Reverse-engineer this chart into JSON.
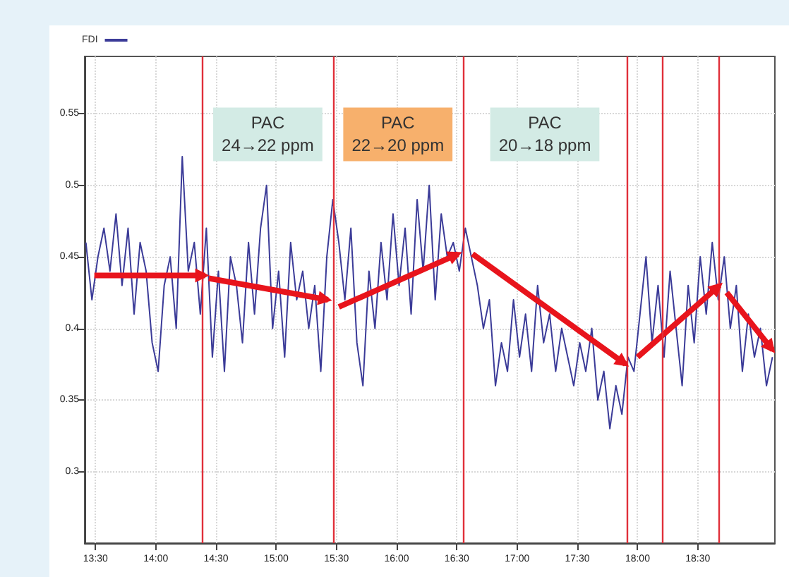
{
  "chart_data": {
    "type": "line",
    "legend": "top left",
    "grid": true,
    "marker": "none",
    "line_style": "solid",
    "xlim": [
      13.41,
      19.14
    ],
    "ylim": [
      0.25,
      0.59
    ],
    "xticks": [
      {
        "value": 13.5,
        "label": "13:30"
      },
      {
        "value": 14,
        "label": "14:00"
      },
      {
        "value": 14.5,
        "label": "14:30"
      },
      {
        "value": 15,
        "label": "15:00"
      },
      {
        "value": 15.5,
        "label": "15:30"
      },
      {
        "value": 16,
        "label": "16:00"
      },
      {
        "value": 16.5,
        "label": "16:30"
      },
      {
        "value": 17,
        "label": "17:00"
      },
      {
        "value": 17.5,
        "label": "17:30"
      },
      {
        "value": 18,
        "label": "18:00"
      },
      {
        "value": 18.5,
        "label": "18:30"
      }
    ],
    "yticks": [
      0.3,
      0.35,
      0.4,
      0.45,
      0.5,
      0.55
    ],
    "series": [
      {
        "name": "FDI",
        "color": "#3b3b98",
        "x": [
          13.42,
          13.47,
          13.52,
          13.57,
          13.62,
          13.67,
          13.72,
          13.77,
          13.82,
          13.87,
          13.92,
          13.97,
          14.02,
          14.07,
          14.12,
          14.17,
          14.22,
          14.27,
          14.32,
          14.37,
          14.42,
          14.47,
          14.52,
          14.57,
          14.62,
          14.67,
          14.72,
          14.77,
          14.82,
          14.87,
          14.92,
          14.97,
          15.02,
          15.07,
          15.12,
          15.17,
          15.22,
          15.27,
          15.32,
          15.37,
          15.42,
          15.47,
          15.52,
          15.57,
          15.62,
          15.67,
          15.72,
          15.77,
          15.82,
          15.87,
          15.92,
          15.97,
          16.02,
          16.07,
          16.12,
          16.17,
          16.22,
          16.27,
          16.32,
          16.37,
          16.42,
          16.47,
          16.52,
          16.57,
          16.62,
          16.67,
          16.72,
          16.77,
          16.82,
          16.87,
          16.92,
          16.97,
          17.02,
          17.07,
          17.12,
          17.17,
          17.22,
          17.27,
          17.32,
          17.37,
          17.42,
          17.47,
          17.52,
          17.57,
          17.62,
          17.67,
          17.72,
          17.77,
          17.82,
          17.87,
          17.92,
          17.97,
          18.02,
          18.07,
          18.12,
          18.17,
          18.22,
          18.27,
          18.32,
          18.37,
          18.42,
          18.47,
          18.52,
          18.57,
          18.62,
          18.67,
          18.72,
          18.77,
          18.82,
          18.87,
          18.92,
          18.97,
          19.02,
          19.07,
          19.12
        ],
        "values": [
          0.46,
          0.42,
          0.45,
          0.47,
          0.44,
          0.48,
          0.43,
          0.47,
          0.41,
          0.46,
          0.44,
          0.39,
          0.37,
          0.43,
          0.45,
          0.4,
          0.52,
          0.44,
          0.46,
          0.41,
          0.47,
          0.38,
          0.44,
          0.37,
          0.45,
          0.43,
          0.39,
          0.46,
          0.41,
          0.47,
          0.5,
          0.4,
          0.44,
          0.38,
          0.46,
          0.42,
          0.44,
          0.4,
          0.43,
          0.37,
          0.45,
          0.49,
          0.46,
          0.42,
          0.47,
          0.39,
          0.36,
          0.44,
          0.4,
          0.46,
          0.42,
          0.48,
          0.43,
          0.47,
          0.41,
          0.49,
          0.44,
          0.5,
          0.42,
          0.48,
          0.45,
          0.46,
          0.44,
          0.47,
          0.45,
          0.43,
          0.4,
          0.42,
          0.36,
          0.39,
          0.37,
          0.42,
          0.38,
          0.41,
          0.37,
          0.43,
          0.39,
          0.41,
          0.37,
          0.4,
          0.38,
          0.36,
          0.39,
          0.37,
          0.4,
          0.35,
          0.37,
          0.33,
          0.36,
          0.34,
          0.38,
          0.37,
          0.41,
          0.45,
          0.39,
          0.43,
          0.38,
          0.44,
          0.4,
          0.36,
          0.43,
          0.39,
          0.45,
          0.41,
          0.46,
          0.42,
          0.45,
          0.4,
          0.43,
          0.37,
          0.41,
          0.38,
          0.4,
          0.36,
          0.38
        ]
      },
      {
        "color": "#e8141c",
        "x": [
          13.49,
          14.41,
          14.42,
          14.44,
          15.43,
          15.47,
          15.52,
          16.51,
          16.57,
          16.63,
          17.9,
          17.95,
          18.0,
          18.68,
          18.71,
          18.74,
          19.12
        ],
        "values": [
          0.437,
          0.437,
          null,
          0.435,
          0.42,
          null,
          0.415,
          0.452,
          null,
          0.452,
          0.375,
          null,
          0.38,
          0.43,
          null,
          0.425,
          0.385
        ]
      }
    ],
    "ref_lines": [
      {
        "axis": "x",
        "value": 14.39,
        "color": "#e0303a"
      },
      {
        "axis": "x",
        "value": 15.47,
        "color": "#e0303a"
      },
      {
        "axis": "x",
        "value": 16.55,
        "color": "#e0303a"
      },
      {
        "axis": "x",
        "value": 17.91,
        "color": "#e0303a"
      },
      {
        "axis": "x",
        "value": 18.2,
        "color": "#e0303a"
      },
      {
        "axis": "x",
        "value": 18.68,
        "color": "#e0303a"
      }
    ],
    "annotations": [
      "PAC\n24→22 ppm",
      "PAC\n22→20 ppm",
      "PAC\n20→18 ppm"
    ]
  }
}
